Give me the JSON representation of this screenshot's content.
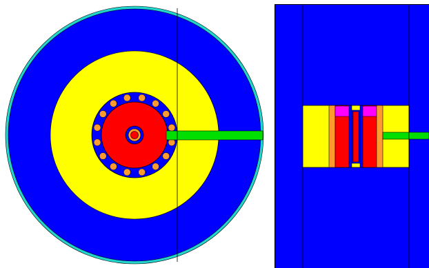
{
  "figure": {
    "panels": [
      {
        "name": "top-view",
        "label": ""
      },
      {
        "name": "side-view",
        "label": ""
      }
    ]
  },
  "colors": {
    "background": "#ffffff",
    "outer-rim": "#22d4cc",
    "moderator": "#0000ff",
    "reflector": "#ffff00",
    "core": "#ff0000",
    "fuel-pin": "#ff9a2e",
    "beam-port": "#00e000",
    "top-cap": "#ff00ff",
    "outline": "#000000"
  },
  "components": [
    {
      "name": "moderator",
      "color_key": "moderator"
    },
    {
      "name": "reflector",
      "color_key": "reflector"
    },
    {
      "name": "core",
      "color_key": "core"
    },
    {
      "name": "fuel-pins",
      "color_key": "fuel-pin",
      "count": 16
    },
    {
      "name": "beam-port",
      "color_key": "beam-port"
    },
    {
      "name": "top-cap",
      "color_key": "top-cap",
      "count": 2
    }
  ]
}
